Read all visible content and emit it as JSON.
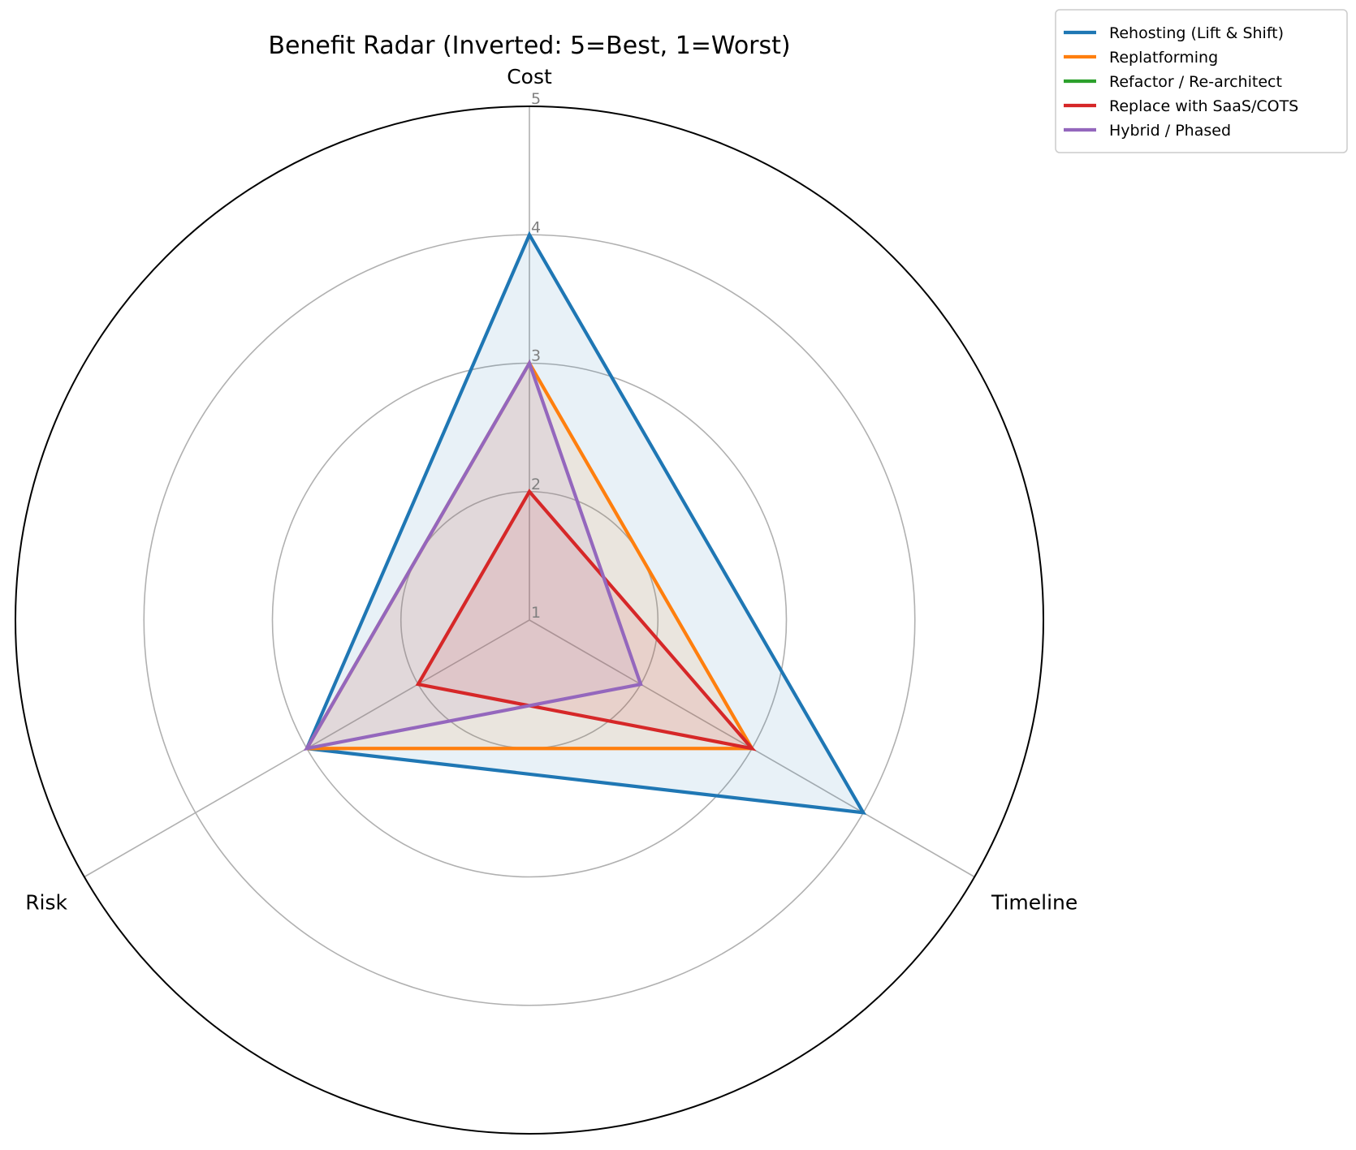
{
  "chart_data": {
    "type": "radar",
    "title": "Benefit Radar (Inverted: 5=Best, 1=Worst)",
    "axes": [
      "Cost",
      "Timeline",
      "Risk"
    ],
    "rlim": [
      1,
      5
    ],
    "rticks": [
      "1",
      "2",
      "3",
      "4",
      "5"
    ],
    "grid": true,
    "legend_position": "top-right",
    "series": [
      {
        "name": "Rehosting (Lift & Shift)",
        "color": "#1f77b4",
        "values": [
          4,
          4,
          3
        ]
      },
      {
        "name": "Replatforming",
        "color": "#ff7f0e",
        "values": [
          3,
          3,
          3
        ]
      },
      {
        "name": "Refactor / Re-architect",
        "color": "#2ca02c",
        "values": [
          1,
          1,
          1
        ]
      },
      {
        "name": "Replace with SaaS/COTS",
        "color": "#d62728",
        "values": [
          2,
          3,
          2
        ]
      },
      {
        "name": "Hybrid / Phased",
        "color": "#9467bd",
        "values": [
          3,
          2,
          3
        ]
      }
    ]
  }
}
